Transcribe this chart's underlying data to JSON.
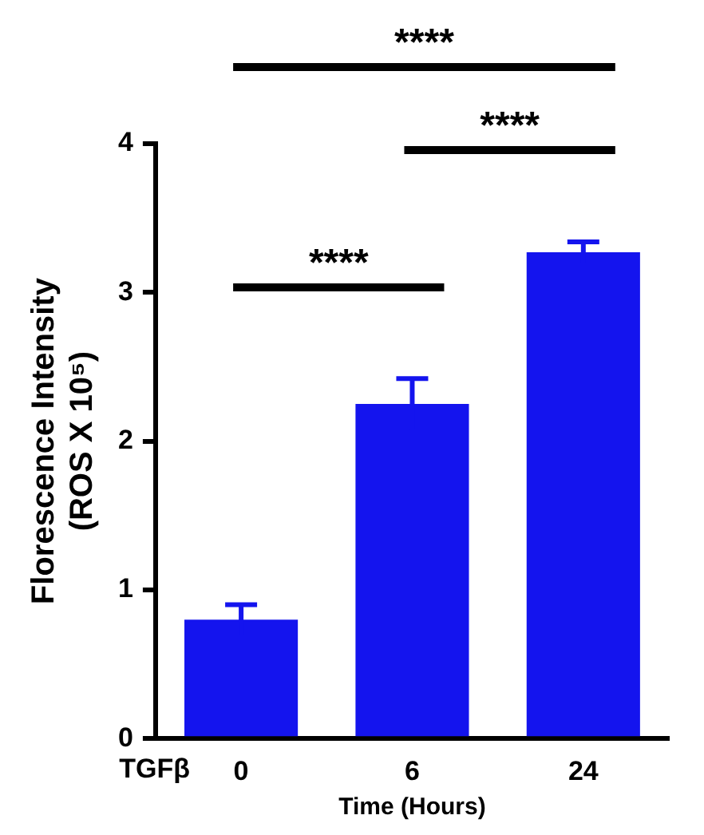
{
  "chart_data": {
    "type": "bar",
    "categories": [
      "0",
      "6",
      "24"
    ],
    "values": [
      0.8,
      2.25,
      3.27
    ],
    "errors": [
      0.1,
      0.17,
      0.07
    ],
    "color": "#1414ee",
    "xlabel": "Time (Hours)",
    "ylabel": "Florescence Intensity\n(ROS X 10⁵)",
    "ylim": [
      0,
      4
    ],
    "yticks": [
      0,
      1,
      2,
      3,
      4
    ],
    "grid": false,
    "legend": false,
    "annotations": [
      "****",
      "****",
      "****",
      "TGFβ"
    ]
  }
}
